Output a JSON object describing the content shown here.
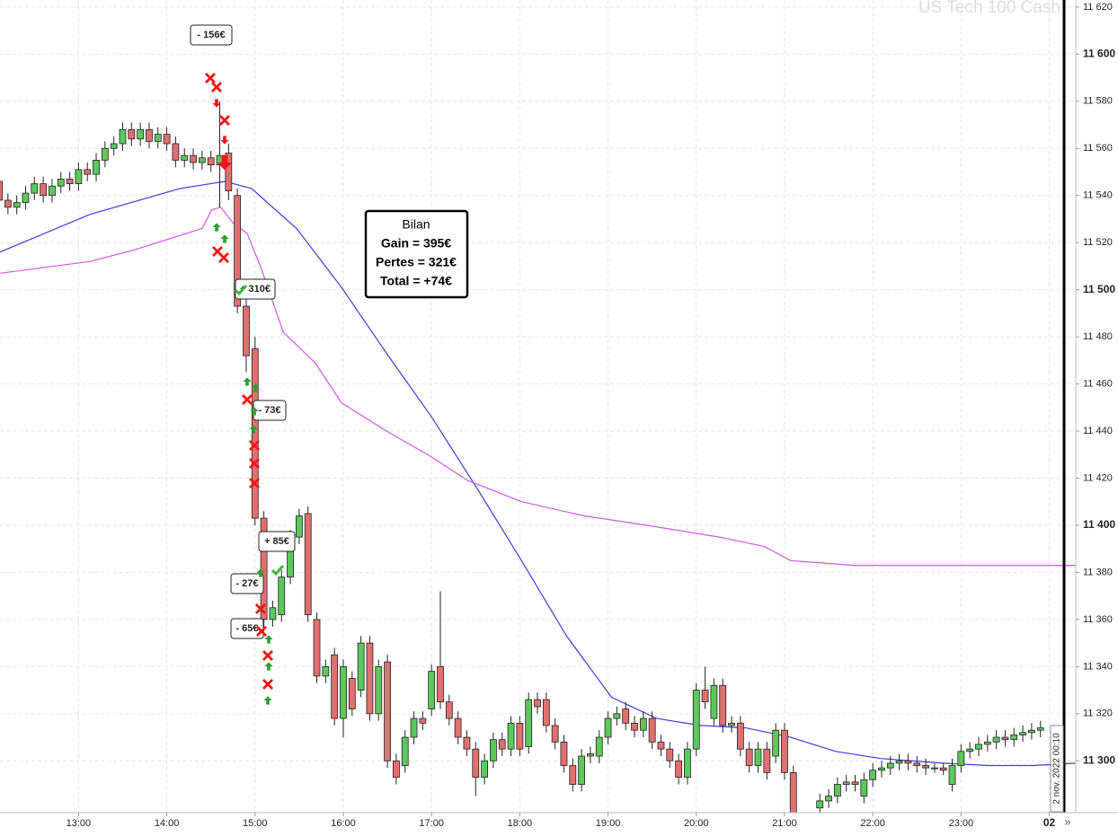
{
  "chart_data": {
    "type": "candlestick",
    "watermark": "US Tech 100 Cash",
    "up_color": "#5cc85c",
    "down_color": "#e07070",
    "xlim": [
      12.11,
      24.3
    ],
    "ylim": [
      11278,
      11623
    ],
    "grid": true,
    "xticks": [
      {
        "value": 13,
        "label": "13:00"
      },
      {
        "value": 14,
        "label": "14:00"
      },
      {
        "value": 15,
        "label": "15:00"
      },
      {
        "value": 16,
        "label": "16:00"
      },
      {
        "value": 17,
        "label": "17:00"
      },
      {
        "value": 18,
        "label": "18:00"
      },
      {
        "value": 19,
        "label": "19:00"
      },
      {
        "value": 20,
        "label": "20:00"
      },
      {
        "value": 21,
        "label": "21:00"
      },
      {
        "value": 22,
        "label": "22:00"
      },
      {
        "value": 23,
        "label": "23:00"
      },
      {
        "value": 24,
        "label": "02"
      }
    ],
    "yticks": [
      {
        "value": 11300,
        "label": "11 300"
      },
      {
        "value": 11320,
        "label": "11 320"
      },
      {
        "value": 11340,
        "label": "11 340"
      },
      {
        "value": 11360,
        "label": "11 360"
      },
      {
        "value": 11380,
        "label": "11 380"
      },
      {
        "value": 11400,
        "label": "11 400"
      },
      {
        "value": 11420,
        "label": "11 420"
      },
      {
        "value": 11440,
        "label": "11 440"
      },
      {
        "value": 11460,
        "label": "11 460"
      },
      {
        "value": 11480,
        "label": "11 480"
      },
      {
        "value": 11500,
        "label": "11 500"
      },
      {
        "value": 11520,
        "label": "11 520"
      },
      {
        "value": 11540,
        "label": "11 540"
      },
      {
        "value": 11560,
        "label": "11 560"
      },
      {
        "value": 11580,
        "label": "11 580"
      },
      {
        "value": 11600,
        "label": "11 600"
      },
      {
        "value": 11620,
        "label": "11 620"
      }
    ],
    "candles": {
      "x": [
        12.1,
        12.2,
        12.3,
        12.4,
        12.5,
        12.6,
        12.7,
        12.8,
        12.9,
        13.0,
        13.1,
        13.2,
        13.3,
        13.4,
        13.5,
        13.6,
        13.7,
        13.8,
        13.9,
        14.0,
        14.1,
        14.2,
        14.3,
        14.4,
        14.5,
        14.6,
        14.7,
        14.8,
        14.9,
        15.0,
        15.1,
        15.2,
        15.3,
        15.4,
        15.5,
        15.6,
        15.7,
        15.8,
        15.9,
        16.0,
        16.1,
        16.2,
        16.3,
        16.4,
        16.5,
        16.6,
        16.7,
        16.8,
        16.9,
        17.0,
        17.1,
        17.2,
        17.3,
        17.4,
        17.5,
        17.6,
        17.7,
        17.8,
        17.9,
        18.0,
        18.1,
        18.2,
        18.3,
        18.4,
        18.5,
        18.6,
        18.7,
        18.8,
        18.9,
        19.0,
        19.1,
        19.2,
        19.3,
        19.4,
        19.5,
        19.6,
        19.7,
        19.8,
        19.9,
        20.0,
        20.1,
        20.2,
        20.3,
        20.4,
        20.5,
        20.6,
        20.7,
        20.8,
        20.9,
        21.0,
        21.1,
        21.4,
        21.5,
        21.6,
        21.7,
        21.8,
        21.9,
        22.0,
        22.1,
        22.2,
        22.3,
        22.4,
        22.5,
        22.6,
        22.7,
        22.8,
        22.9,
        23.0,
        23.1,
        23.2,
        23.3,
        23.4,
        23.5,
        23.6,
        23.7,
        23.8,
        23.9
      ],
      "open": [
        11546,
        11538,
        11535,
        11537,
        11541,
        11545,
        11540,
        11544,
        11547,
        11545,
        11551,
        11549,
        11555,
        11560,
        11562,
        11568,
        11564,
        11568,
        11563,
        11566,
        11562,
        11555,
        11557,
        11554,
        11556,
        11553,
        11558,
        11540,
        11493,
        11475,
        11403,
        11360,
        11362,
        11378,
        11395,
        11405,
        11360,
        11336,
        11345,
        11318,
        11335,
        11330,
        11350,
        11320,
        11342,
        11300,
        11298,
        11310,
        11318,
        11322,
        11340,
        11325,
        11318,
        11310,
        11305,
        11293,
        11300,
        11309,
        11305,
        11316,
        11306,
        11326,
        11326,
        11315,
        11308,
        11298,
        11290,
        11302,
        11302,
        11310,
        11318,
        11322,
        11316,
        11313,
        11318,
        11308,
        11305,
        11300,
        11293,
        11305,
        11330,
        11318,
        11332,
        11315,
        11316,
        11305,
        11298,
        11305,
        11302,
        11313,
        11295,
        11280,
        11283,
        11285,
        11290,
        11291,
        11285,
        11292,
        11296,
        11297,
        11299,
        11300,
        11299,
        11298,
        11297,
        11297,
        11290,
        11298,
        11304,
        11305,
        11307,
        11308,
        11310,
        11309,
        11311,
        11312,
        11313
      ],
      "high": [
        11549,
        11541,
        11540,
        11544,
        11548,
        11548,
        11547,
        11550,
        11550,
        11554,
        11554,
        11558,
        11563,
        11565,
        11571,
        11571,
        11571,
        11571,
        11569,
        11569,
        11565,
        11560,
        11560,
        11559,
        11559,
        11580,
        11562,
        11543,
        11496,
        11480,
        11406,
        11368,
        11381,
        11398,
        11407,
        11408,
        11363,
        11343,
        11348,
        11343,
        11338,
        11353,
        11353,
        11343,
        11345,
        11303,
        11313,
        11321,
        11321,
        11341,
        11372,
        11328,
        11321,
        11313,
        11308,
        11303,
        11312,
        11312,
        11319,
        11319,
        11329,
        11329,
        11329,
        11318,
        11311,
        11301,
        11305,
        11306,
        11313,
        11321,
        11323,
        11325,
        11319,
        11321,
        11321,
        11311,
        11308,
        11303,
        11308,
        11333,
        11340,
        11335,
        11335,
        11319,
        11319,
        11308,
        11308,
        11308,
        11316,
        11316,
        11298,
        11286,
        11288,
        11293,
        11294,
        11294,
        11295,
        11299,
        11300,
        11302,
        11303,
        11303,
        11302,
        11301,
        11299,
        11299,
        11301,
        11307,
        11308,
        11310,
        11311,
        11313,
        11313,
        11314,
        11315,
        11316,
        11317
      ],
      "low": [
        11535,
        11532,
        11532,
        11534,
        11538,
        11537,
        11537,
        11541,
        11542,
        11542,
        11546,
        11546,
        11552,
        11557,
        11559,
        11561,
        11561,
        11560,
        11560,
        11559,
        11552,
        11552,
        11551,
        11551,
        11550,
        11535,
        11538,
        11490,
        11465,
        11400,
        11355,
        11357,
        11359,
        11375,
        11392,
        11359,
        11333,
        11333,
        11315,
        11310,
        11319,
        11327,
        11317,
        11317,
        11297,
        11290,
        11295,
        11307,
        11313,
        11319,
        11322,
        11315,
        11307,
        11302,
        11285,
        11290,
        11297,
        11302,
        11302,
        11302,
        11303,
        11320,
        11312,
        11305,
        11295,
        11287,
        11287,
        11299,
        11299,
        11307,
        11315,
        11313,
        11310,
        11310,
        11305,
        11302,
        11297,
        11290,
        11290,
        11302,
        11322,
        11315,
        11312,
        11312,
        11302,
        11295,
        11295,
        11292,
        11299,
        11292,
        11275,
        11277,
        11280,
        11282,
        11287,
        11287,
        11282,
        11289,
        11293,
        11294,
        11296,
        11296,
        11295,
        11294,
        11295,
        11294,
        11287,
        11295,
        11301,
        11302,
        11304,
        11305,
        11306,
        11306,
        11308,
        11309,
        11310
      ],
      "close": [
        11538,
        11535,
        11537,
        11541,
        11545,
        11540,
        11544,
        11547,
        11545,
        11551,
        11549,
        11555,
        11560,
        11562,
        11568,
        11564,
        11568,
        11563,
        11566,
        11562,
        11555,
        11557,
        11554,
        11556,
        11553,
        11557,
        11542,
        11493,
        11472,
        11403,
        11360,
        11365,
        11378,
        11395,
        11404,
        11362,
        11336,
        11340,
        11318,
        11340,
        11322,
        11350,
        11320,
        11340,
        11300,
        11293,
        11310,
        11318,
        11316,
        11338,
        11325,
        11318,
        11310,
        11305,
        11293,
        11300,
        11309,
        11305,
        11316,
        11305,
        11326,
        11323,
        11315,
        11308,
        11298,
        11290,
        11302,
        11303,
        11310,
        11318,
        11320,
        11316,
        11313,
        11318,
        11308,
        11305,
        11300,
        11293,
        11305,
        11330,
        11325,
        11332,
        11315,
        11316,
        11305,
        11298,
        11305,
        11295,
        11313,
        11295,
        11278,
        11283,
        11285,
        11290,
        11291,
        11290,
        11292,
        11296,
        11297,
        11299,
        11300,
        11299,
        11298,
        11297,
        11297,
        11296,
        11298,
        11304,
        11305,
        11307,
        11308,
        11310,
        11309,
        11311,
        11312,
        11313,
        11314
      ]
    },
    "lines": [
      {
        "color": "#3b3be8",
        "x": [
          12.11,
          13.13,
          14.15,
          14.66,
          14.96,
          15.47,
          15.98,
          16.49,
          17.0,
          17.51,
          18.02,
          18.53,
          19.04,
          19.55,
          20.05,
          20.56,
          21.07,
          21.58,
          22.09,
          22.8,
          23.31,
          23.82,
          24.3
        ],
        "values": [
          11516,
          11532,
          11543,
          11546,
          11543,
          11526,
          11501,
          11473,
          11446,
          11416,
          11385,
          11353,
          11327,
          11318,
          11315,
          11314,
          11310,
          11304,
          11301,
          11299,
          11298,
          11298,
          11299
        ]
      },
      {
        "color": "#d455e6",
        "x": [
          12.11,
          13.13,
          13.64,
          14.4,
          14.51,
          14.61,
          14.76,
          14.91,
          15.07,
          15.32,
          15.68,
          15.98,
          16.49,
          17.0,
          17.41,
          18.02,
          18.73,
          19.44,
          20.26,
          20.77,
          21.07,
          21.79,
          22.8,
          24.3
        ],
        "values": [
          11507,
          11512,
          11517,
          11526,
          11534,
          11535,
          11528,
          11524,
          11509,
          11482,
          11469,
          11452,
          11440,
          11429,
          11419,
          11410,
          11404,
          11400,
          11395,
          11391,
          11385,
          11383,
          11383,
          11383
        ]
      }
    ],
    "annotations": [
      "- 156€",
      "+ 310€",
      "- 73€",
      "+ 85€",
      "- 27€",
      "- 65€"
    ],
    "summary": [
      "Bilan",
      "Gain = 395€",
      "Pertes = 321€",
      "Total = +74€"
    ],
    "current_time_label": "2 nov. 2022 00:10"
  }
}
